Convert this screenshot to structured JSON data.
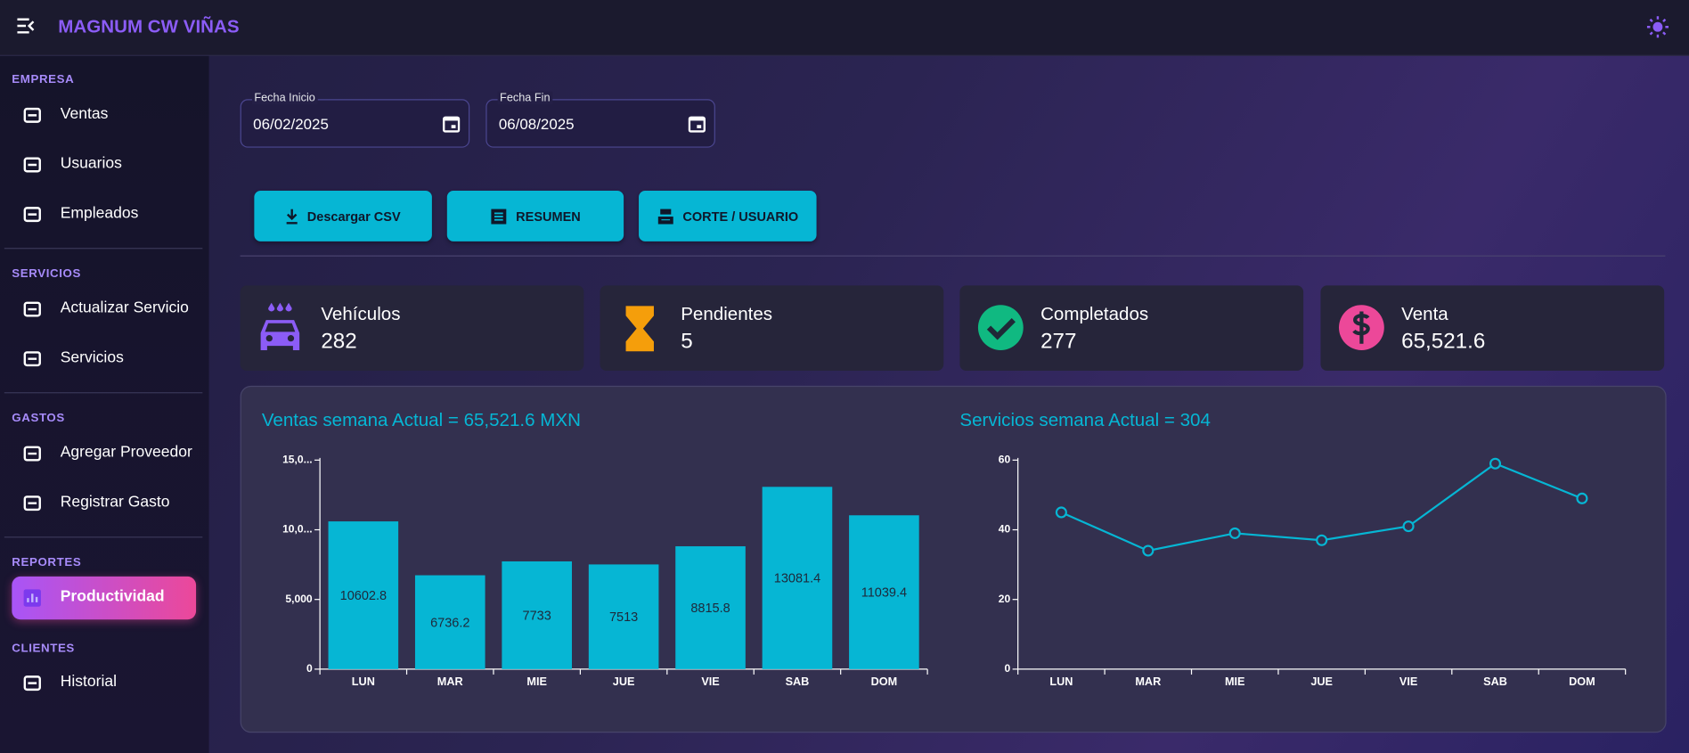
{
  "header": {
    "title": "MAGNUM CW VIÑAS"
  },
  "sidebar": {
    "sections": [
      {
        "title": "EMPRESA",
        "items": [
          "Ventas",
          "Usuarios",
          "Empleados"
        ]
      },
      {
        "title": "SERVICIOS",
        "items": [
          "Actualizar Servicio",
          "Servicios"
        ]
      },
      {
        "title": "GASTOS",
        "items": [
          "Agregar Proveedor",
          "Registrar Gasto"
        ]
      },
      {
        "title": "REPORTES",
        "items": [
          "Productividad"
        ]
      },
      {
        "title": "CLIENTES",
        "items": [
          "Historial"
        ]
      }
    ]
  },
  "filters": [
    {
      "label": "Fecha Inicio",
      "value": "06/02/2025"
    },
    {
      "label": "Fecha Fin",
      "value": "06/08/2025"
    }
  ],
  "buttons": [
    "Descargar CSV",
    "RESUMEN",
    "CORTE / USUARIO"
  ],
  "stats": [
    {
      "label": "Vehículos",
      "value": 282
    },
    {
      "label": "Pendientes",
      "value": 5
    },
    {
      "label": "Completados",
      "value": 277
    },
    {
      "label": "Venta",
      "value": "65,521.6"
    }
  ],
  "chart_data": [
    {
      "type": "bar",
      "title": "Ventas semana Actual = 65,521.6 MXN",
      "categories": [
        "LUN",
        "MAR",
        "MIE",
        "JUE",
        "VIE",
        "SAB",
        "DOM"
      ],
      "values": [
        10602.8,
        6736.2,
        7733,
        7513,
        8815.8,
        13081.4,
        11039.4
      ],
      "color": "#06b6d4",
      "ylim": [
        0,
        15000
      ],
      "yticks": [
        0,
        {
          "value": 5000,
          "label": "5,000"
        },
        {
          "value": 10000,
          "label": "10,0..."
        },
        {
          "value": 15000,
          "label": "15,0..."
        }
      ]
    },
    {
      "type": "line",
      "title": "Servicios semana Actual = 304",
      "categories": [
        "LUN",
        "MAR",
        "MIE",
        "JUE",
        "VIE",
        "SAB",
        "DOM"
      ],
      "values": [
        45,
        34,
        39,
        37,
        41,
        59,
        49
      ],
      "color": "#06b6d4",
      "ylim": [
        0,
        60
      ],
      "yticks": [
        0,
        20,
        40,
        60
      ]
    }
  ]
}
